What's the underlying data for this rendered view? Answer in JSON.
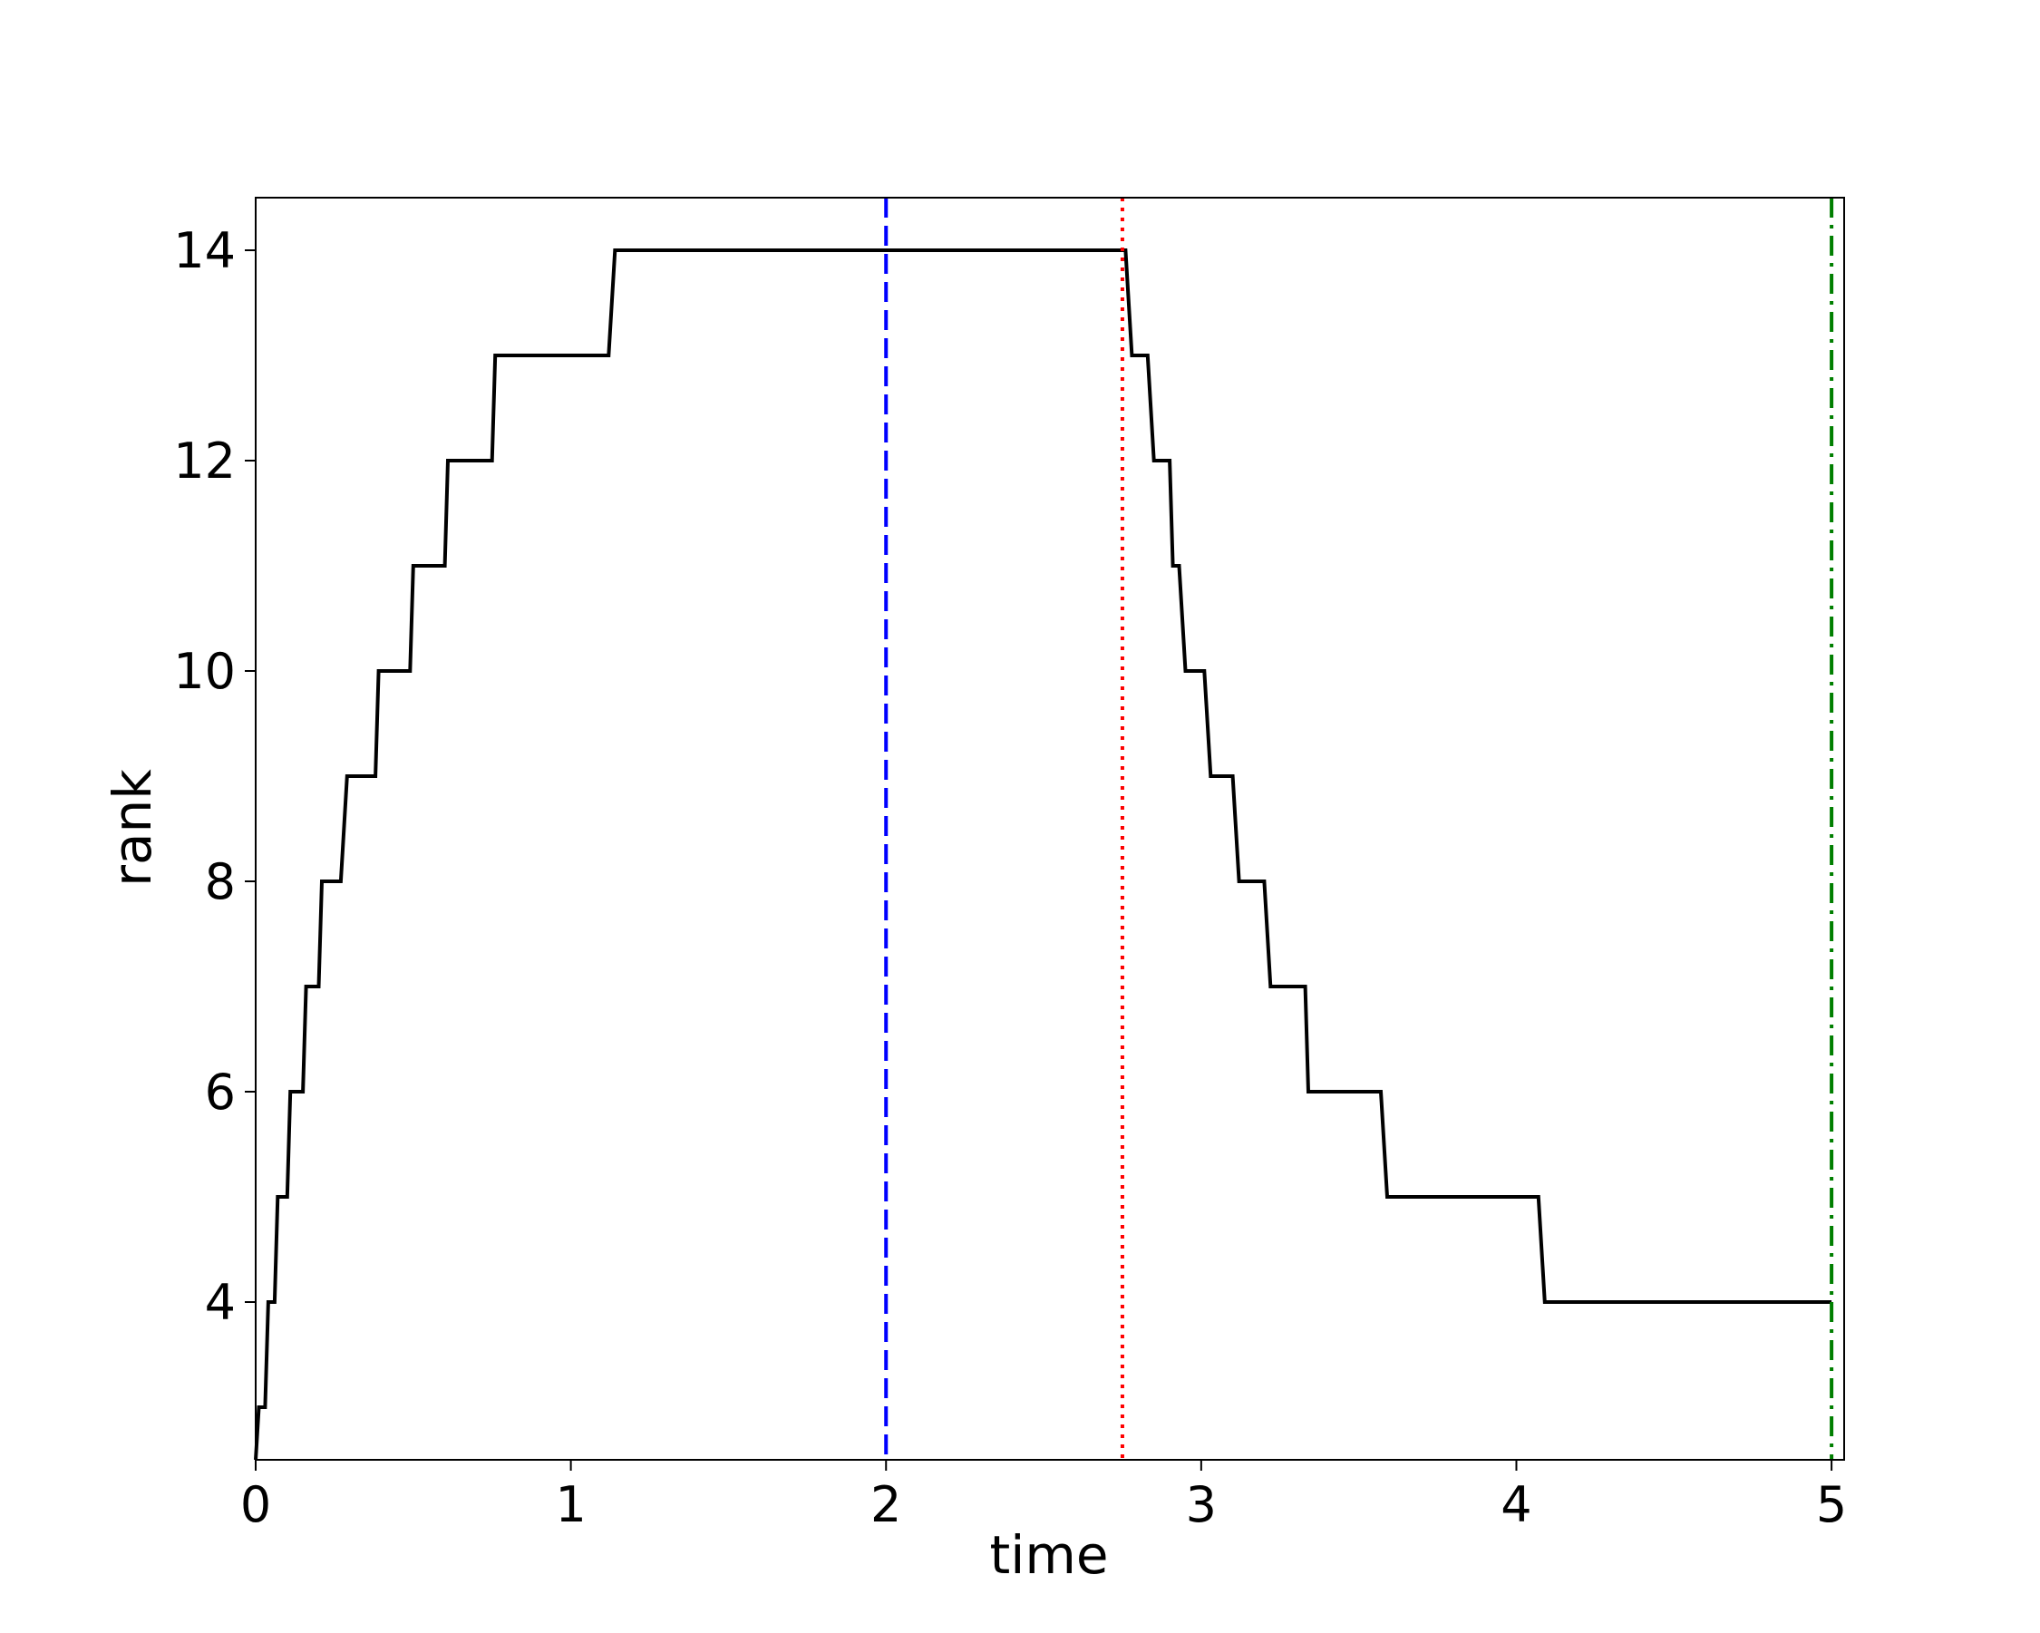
{
  "chart_data": {
    "type": "line",
    "title": "",
    "xlabel": "time",
    "ylabel": "rank",
    "xlim": [
      0,
      5.04
    ],
    "ylim": [
      2.5,
      14.5
    ],
    "xticks": [
      0,
      1,
      2,
      3,
      4,
      5
    ],
    "yticks": [
      4,
      6,
      8,
      10,
      12,
      14
    ],
    "grid": false,
    "line_color": "#000000",
    "series": [
      {
        "x": [
          0,
          0.01,
          0.03,
          0.04,
          0.06,
          0.08,
          0.11,
          0.15,
          0.2,
          0.27,
          0.38,
          0.5,
          0.61,
          0.76,
          1.13,
          2.77,
          2.84,
          2.91,
          2.95,
          3.02,
          3.12,
          3.21,
          3.34,
          3.58,
          4.08,
          5.0
        ],
        "y": [
          2.5,
          3,
          3,
          4,
          5,
          6,
          7,
          8,
          9,
          10,
          11,
          12,
          13,
          13,
          14,
          13,
          12,
          11,
          10,
          9,
          8,
          7,
          6,
          5,
          4,
          4
        ],
        "step_points": [
          [
            0,
            2.5
          ],
          [
            0.01,
            3
          ],
          [
            0.03,
            3
          ],
          [
            0.04,
            4
          ],
          [
            0.06,
            4
          ],
          [
            0.07,
            5
          ],
          [
            0.1,
            5
          ],
          [
            0.11,
            6
          ],
          [
            0.15,
            6
          ],
          [
            0.16,
            7
          ],
          [
            0.2,
            7
          ],
          [
            0.21,
            8
          ],
          [
            0.27,
            8
          ],
          [
            0.29,
            9
          ],
          [
            0.38,
            9
          ],
          [
            0.39,
            10
          ],
          [
            0.49,
            10
          ],
          [
            0.5,
            11
          ],
          [
            0.6,
            11
          ],
          [
            0.61,
            12
          ],
          [
            0.75,
            12
          ],
          [
            0.76,
            13
          ],
          [
            1.12,
            13
          ],
          [
            1.14,
            14
          ],
          [
            2.76,
            14
          ],
          [
            2.78,
            13
          ],
          [
            2.83,
            13
          ],
          [
            2.85,
            12
          ],
          [
            2.9,
            12
          ],
          [
            2.91,
            11
          ],
          [
            2.93,
            11
          ],
          [
            2.95,
            10
          ],
          [
            3.01,
            10
          ],
          [
            3.03,
            9
          ],
          [
            3.1,
            9
          ],
          [
            3.12,
            8
          ],
          [
            3.2,
            8
          ],
          [
            3.22,
            7
          ],
          [
            3.33,
            7
          ],
          [
            3.34,
            6
          ],
          [
            3.57,
            6
          ],
          [
            3.59,
            5
          ],
          [
            4.07,
            5
          ],
          [
            4.09,
            4
          ],
          [
            5.0,
            4
          ]
        ]
      }
    ],
    "vlines": [
      {
        "x": 2.0,
        "color": "#0000ff",
        "style": "dashed"
      },
      {
        "x": 2.75,
        "color": "#ff0000",
        "style": "dotted"
      },
      {
        "x": 5.0,
        "color": "#007f00",
        "style": "dashdot"
      }
    ]
  }
}
